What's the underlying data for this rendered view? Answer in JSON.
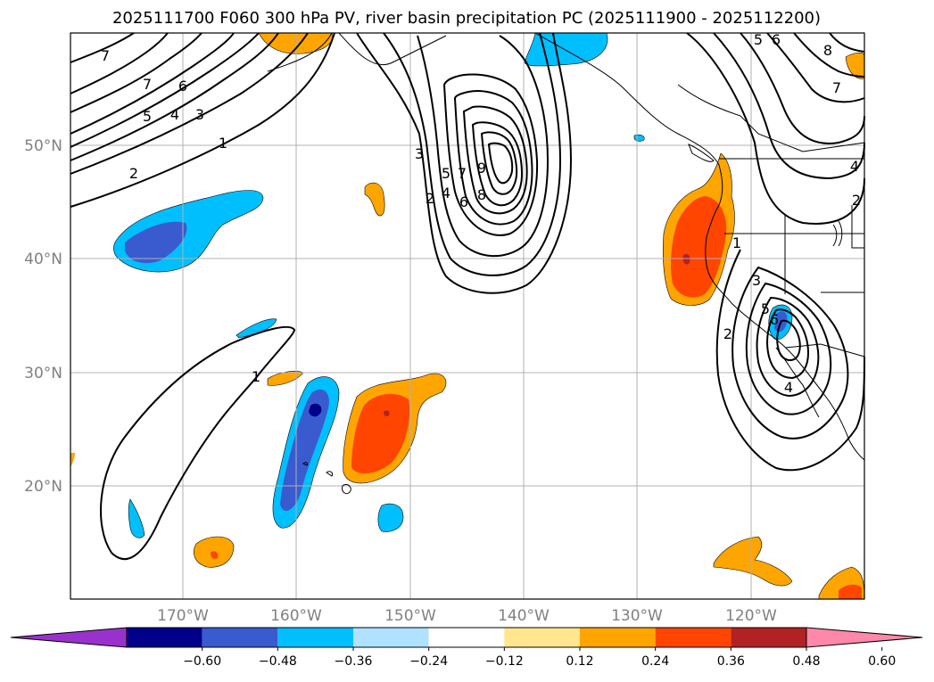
{
  "title": "2025111700 F060 300 hPa PV, river basin precipitation PC (2025111900 - 2025112200)",
  "map": {
    "latitude_labels": [
      "20°N",
      "30°N",
      "40°N",
      "50°N"
    ],
    "longitude_labels": [
      "170°W",
      "160°W",
      "150°W",
      "140°W",
      "130°W",
      "120°W"
    ],
    "latitude_values": [
      20,
      30,
      40,
      50
    ],
    "longitude_values": [
      -170,
      -160,
      -150,
      -140,
      -130,
      -120
    ]
  },
  "pv_contours": {
    "levels": [
      "1",
      "2",
      "3",
      "4",
      "5",
      "6",
      "7",
      "8",
      "9"
    ],
    "labels": [
      "7",
      "7",
      "6",
      "5",
      "4",
      "3",
      "1",
      "2",
      "1",
      "9",
      "8",
      "7",
      "6",
      "5",
      "4",
      "3",
      "2",
      "5",
      "6",
      "8",
      "7",
      "4",
      "2",
      "1",
      "3",
      "5",
      "6",
      "2",
      "4"
    ]
  },
  "colorbar": {
    "tick_labels": [
      "−0.60",
      "−0.48",
      "−0.36",
      "−0.24",
      "−0.12",
      "0.12",
      "0.24",
      "0.36",
      "0.48",
      "0.60"
    ],
    "colors": [
      "#9932cc",
      "#00008b",
      "#3a5bcf",
      "#00bfff",
      "#b0e2ff",
      "#ffffff",
      "#ffe68f",
      "#ffa500",
      "#ff4500",
      "#b22222",
      "#ff88aa"
    ]
  }
}
